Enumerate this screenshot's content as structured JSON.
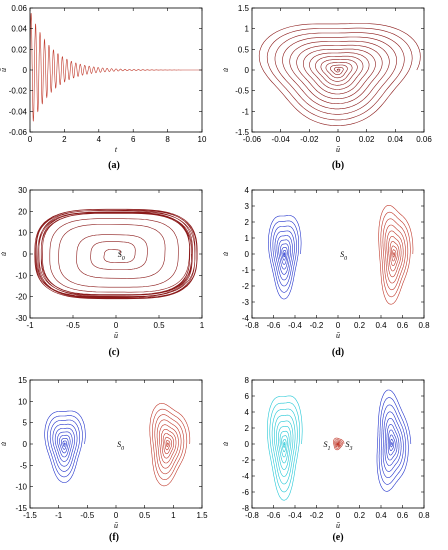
{
  "colors": {
    "red": "#c0392b",
    "darkred": "#8b1a1a",
    "blue": "#2233cc",
    "cyan": "#22c7d6",
    "axis": "#000000"
  },
  "chart_data": [
    {
      "id": "a",
      "type": "line",
      "caption": "(a)",
      "xlabel": "t",
      "ylabel": "ū",
      "xlim": [
        0,
        10
      ],
      "ylim": [
        -0.06,
        0.06
      ],
      "xticks": [
        "0",
        "2",
        "4",
        "6",
        "8",
        "10"
      ],
      "yticks": [
        "-0.06",
        "-0.04",
        "-0.02",
        "0",
        "0.02",
        "0.04",
        "0.06"
      ],
      "xtick_values": [
        0,
        2,
        4,
        6,
        8,
        10
      ],
      "ytick_values": [
        -0.06,
        -0.04,
        -0.02,
        0,
        0.02,
        0.04,
        0.06
      ],
      "series": [
        {
          "color": "red",
          "form": "damped-oscillation",
          "amplitude": 0.058,
          "decay": 0.8,
          "period": 0.26
        }
      ]
    },
    {
      "id": "b",
      "type": "line",
      "caption": "(b)",
      "xlabel": "ū",
      "ylabel": "u̇",
      "xlim": [
        -0.06,
        0.06
      ],
      "ylim": [
        -1.5,
        1.5
      ],
      "xticks": [
        "-0.06",
        "-0.04",
        "-0.02",
        "0",
        "0.02",
        "0.04",
        "0.06"
      ],
      "yticks": [
        "-1.5",
        "-1",
        "-0.5",
        "0",
        "0.5",
        "1",
        "1.5"
      ],
      "xtick_values": [
        -0.06,
        -0.04,
        -0.02,
        0,
        0.02,
        0.04,
        0.06
      ],
      "ytick_values": [
        -1.5,
        -1,
        -0.5,
        0,
        0.5,
        1,
        1.5
      ],
      "series": [
        {
          "color": "darkred",
          "form": "spiral",
          "cx": 0,
          "cy": 0,
          "rx": 0.055,
          "ry": 1.3,
          "turns": 14
        }
      ]
    },
    {
      "id": "c",
      "type": "line",
      "caption": "(c)",
      "xlabel": "ū",
      "ylabel": "u̇",
      "xlim": [
        -1,
        1
      ],
      "ylim": [
        -30,
        30
      ],
      "xticks": [
        "-1",
        "-0.5",
        "0",
        "0.5",
        "1"
      ],
      "yticks": [
        "-30",
        "-20",
        "-10",
        "0",
        "10",
        "20",
        "30"
      ],
      "xtick_values": [
        -1,
        -0.5,
        0,
        0.5,
        1
      ],
      "ytick_values": [
        -30,
        -20,
        -10,
        0,
        10,
        20,
        30
      ],
      "series": [
        {
          "color": "darkred",
          "form": "limit-cycle",
          "rx": 0.9,
          "ry": 20
        }
      ],
      "annotations": [
        {
          "text": "S",
          "sub": "0",
          "x": 0.02,
          "y": 0
        }
      ]
    },
    {
      "id": "d",
      "type": "line",
      "caption": "(d)",
      "xlabel": "ū",
      "ylabel": "u̇",
      "xlim": [
        -0.8,
        0.8
      ],
      "ylim": [
        -4,
        4
      ],
      "xticks": [
        "-0.8",
        "-0.6",
        "-0.4",
        "-0.2",
        "0",
        "0.2",
        "0.4",
        "0.6",
        "0.8"
      ],
      "yticks": [
        "-4",
        "-3",
        "-2",
        "-1",
        "0",
        "1",
        "2",
        "3",
        "4"
      ],
      "xtick_values": [
        -0.8,
        -0.6,
        -0.4,
        -0.2,
        0,
        0.2,
        0.4,
        0.6,
        0.8
      ],
      "ytick_values": [
        -4,
        -3,
        -2,
        -1,
        0,
        1,
        2,
        3,
        4
      ],
      "series": [
        {
          "color": "blue",
          "form": "spiral",
          "cx": -0.5,
          "cy": 0,
          "rx": 0.15,
          "ry": 2.8,
          "turns": 10
        },
        {
          "color": "red",
          "form": "spiral",
          "cx": 0.52,
          "cy": 0,
          "rx": 0.16,
          "ry": 3.2,
          "turns": 10
        }
      ],
      "annotations": [
        {
          "text": "S",
          "sub": "0",
          "x": 0.02,
          "y": 0
        }
      ]
    },
    {
      "id": "f",
      "type": "line",
      "caption": "(f)",
      "xlabel": "ū",
      "ylabel": "u̇",
      "xlim": [
        -1.5,
        1.5
      ],
      "ylim": [
        -15,
        15
      ],
      "xticks": [
        "-1.5",
        "-1",
        "-0.5",
        "0",
        "0.5",
        "1",
        "1.5"
      ],
      "yticks": [
        "-15",
        "-10",
        "-5",
        "0",
        "5",
        "10",
        "15"
      ],
      "xtick_values": [
        -1.5,
        -1,
        -0.5,
        0,
        0.5,
        1,
        1.5
      ],
      "ytick_values": [
        -15,
        -10,
        -5,
        0,
        5,
        10,
        15
      ],
      "series": [
        {
          "color": "blue",
          "form": "spiral",
          "cx": -0.9,
          "cy": 0,
          "rx": 0.35,
          "ry": 9,
          "turns": 10
        },
        {
          "color": "red",
          "form": "spiral",
          "cx": 0.9,
          "cy": 0,
          "rx": 0.35,
          "ry": 10,
          "turns": 10
        }
      ],
      "annotations": [
        {
          "text": "S",
          "sub": "0",
          "x": 0.02,
          "y": 0
        }
      ]
    },
    {
      "id": "e",
      "type": "line",
      "caption": "(e)",
      "xlabel": "ū",
      "ylabel": "u̇",
      "xlim": [
        -0.8,
        0.8
      ],
      "ylim": [
        -8,
        8
      ],
      "xticks": [
        "-0.8",
        "-0.6",
        "-0.4",
        "-0.2",
        "0",
        "0.2",
        "0.4",
        "0.6",
        "0.8"
      ],
      "yticks": [
        "-8",
        "-6",
        "-4",
        "-2",
        "0",
        "2",
        "4",
        "6",
        "8"
      ],
      "xtick_values": [
        -0.8,
        -0.6,
        -0.4,
        -0.2,
        0,
        0.2,
        0.4,
        0.6,
        0.8
      ],
      "ytick_values": [
        -8,
        -6,
        -4,
        -2,
        0,
        2,
        4,
        6,
        8
      ],
      "series": [
        {
          "color": "cyan",
          "form": "spiral",
          "cx": -0.5,
          "cy": 0,
          "rx": 0.16,
          "ry": 7,
          "turns": 10
        },
        {
          "color": "red",
          "form": "spiral",
          "cx": 0,
          "cy": 0,
          "rx": 0.05,
          "ry": 0.8,
          "turns": 6
        },
        {
          "color": "blue",
          "form": "spiral",
          "cx": 0.5,
          "cy": 0,
          "rx": 0.16,
          "ry": 6.5,
          "turns": 10
        }
      ],
      "annotations": [
        {
          "text": "S",
          "sub": "1",
          "x": -0.07,
          "y": 0
        },
        {
          "text": "S",
          "sub": "3",
          "x": 0.07,
          "y": 0
        }
      ]
    }
  ]
}
